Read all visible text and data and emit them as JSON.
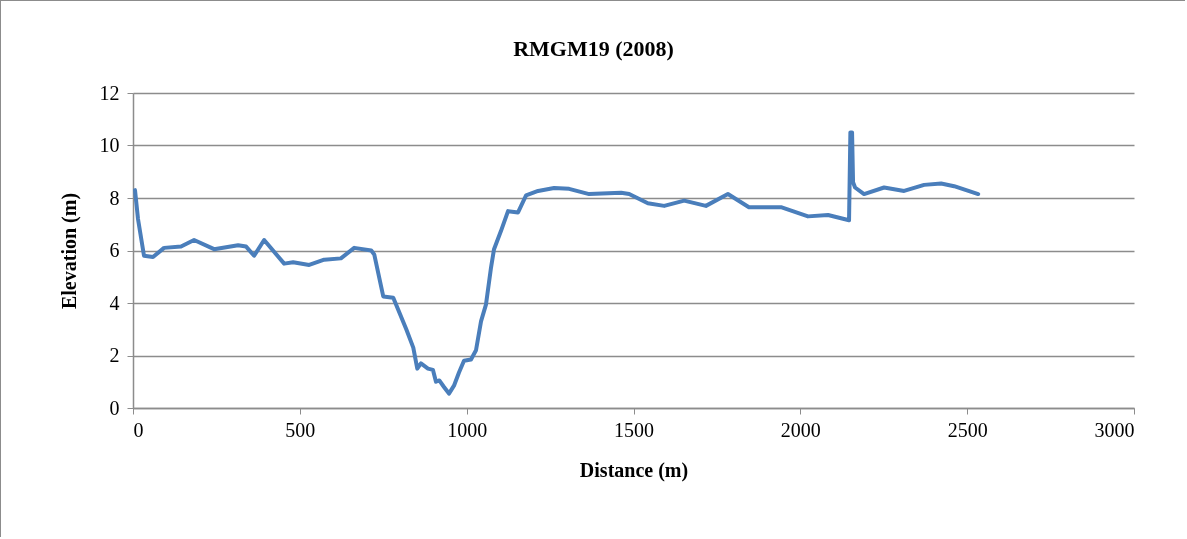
{
  "chart_data": {
    "type": "line",
    "title": "RMGM19 (2008)",
    "xlabel": "Distance (m)",
    "ylabel": "Elevation (m)",
    "xlim": [
      0,
      3000
    ],
    "xticks": [
      0,
      500,
      1000,
      1500,
      2000,
      2500,
      3000
    ],
    "ylim": [
      0,
      12
    ],
    "yticks": [
      0,
      2,
      4,
      6,
      8,
      10,
      12
    ],
    "grid": "y",
    "marker": "none",
    "line_style": "solid",
    "x": [
      6,
      15,
      33,
      60,
      93,
      144,
      183,
      243,
      315,
      339,
      363,
      393,
      453,
      480,
      528,
      573,
      623,
      663,
      714,
      723,
      750,
      780,
      819,
      840,
      852,
      863,
      884,
      899,
      908,
      918,
      932,
      947,
      962,
      977,
      992,
      1013,
      1028,
      1043,
      1058,
      1073,
      1082,
      1103,
      1124,
      1154,
      1178,
      1214,
      1262,
      1307,
      1367,
      1463,
      1487,
      1543,
      1592,
      1652,
      1717,
      1783,
      1846,
      1942,
      2023,
      2083,
      2146,
      2150,
      2155,
      2158,
      2164,
      2191,
      2251,
      2311,
      2371,
      2422,
      2461,
      2533
    ],
    "series": [
      {
        "color": "#4a7ebb",
        "values": [
          8.3,
          7.2,
          5.8,
          5.75,
          6.1,
          6.15,
          6.4,
          6.05,
          6.2,
          6.15,
          5.8,
          6.4,
          5.5,
          5.55,
          5.45,
          5.65,
          5.7,
          6.1,
          6.0,
          5.85,
          4.25,
          4.2,
          3.0,
          2.3,
          1.5,
          1.7,
          1.5,
          1.45,
          1.0,
          1.05,
          0.8,
          0.55,
          0.85,
          1.35,
          1.8,
          1.85,
          2.2,
          3.3,
          3.95,
          5.35,
          6.05,
          6.75,
          7.5,
          7.45,
          8.1,
          8.27,
          8.38,
          8.35,
          8.15,
          8.2,
          8.15,
          7.8,
          7.7,
          7.9,
          7.7,
          8.15,
          7.65,
          7.65,
          7.3,
          7.35,
          7.15,
          10.5,
          10.5,
          8.6,
          8.4,
          8.15,
          8.4,
          8.27,
          8.5,
          8.55,
          8.45,
          8.15
        ]
      }
    ]
  }
}
